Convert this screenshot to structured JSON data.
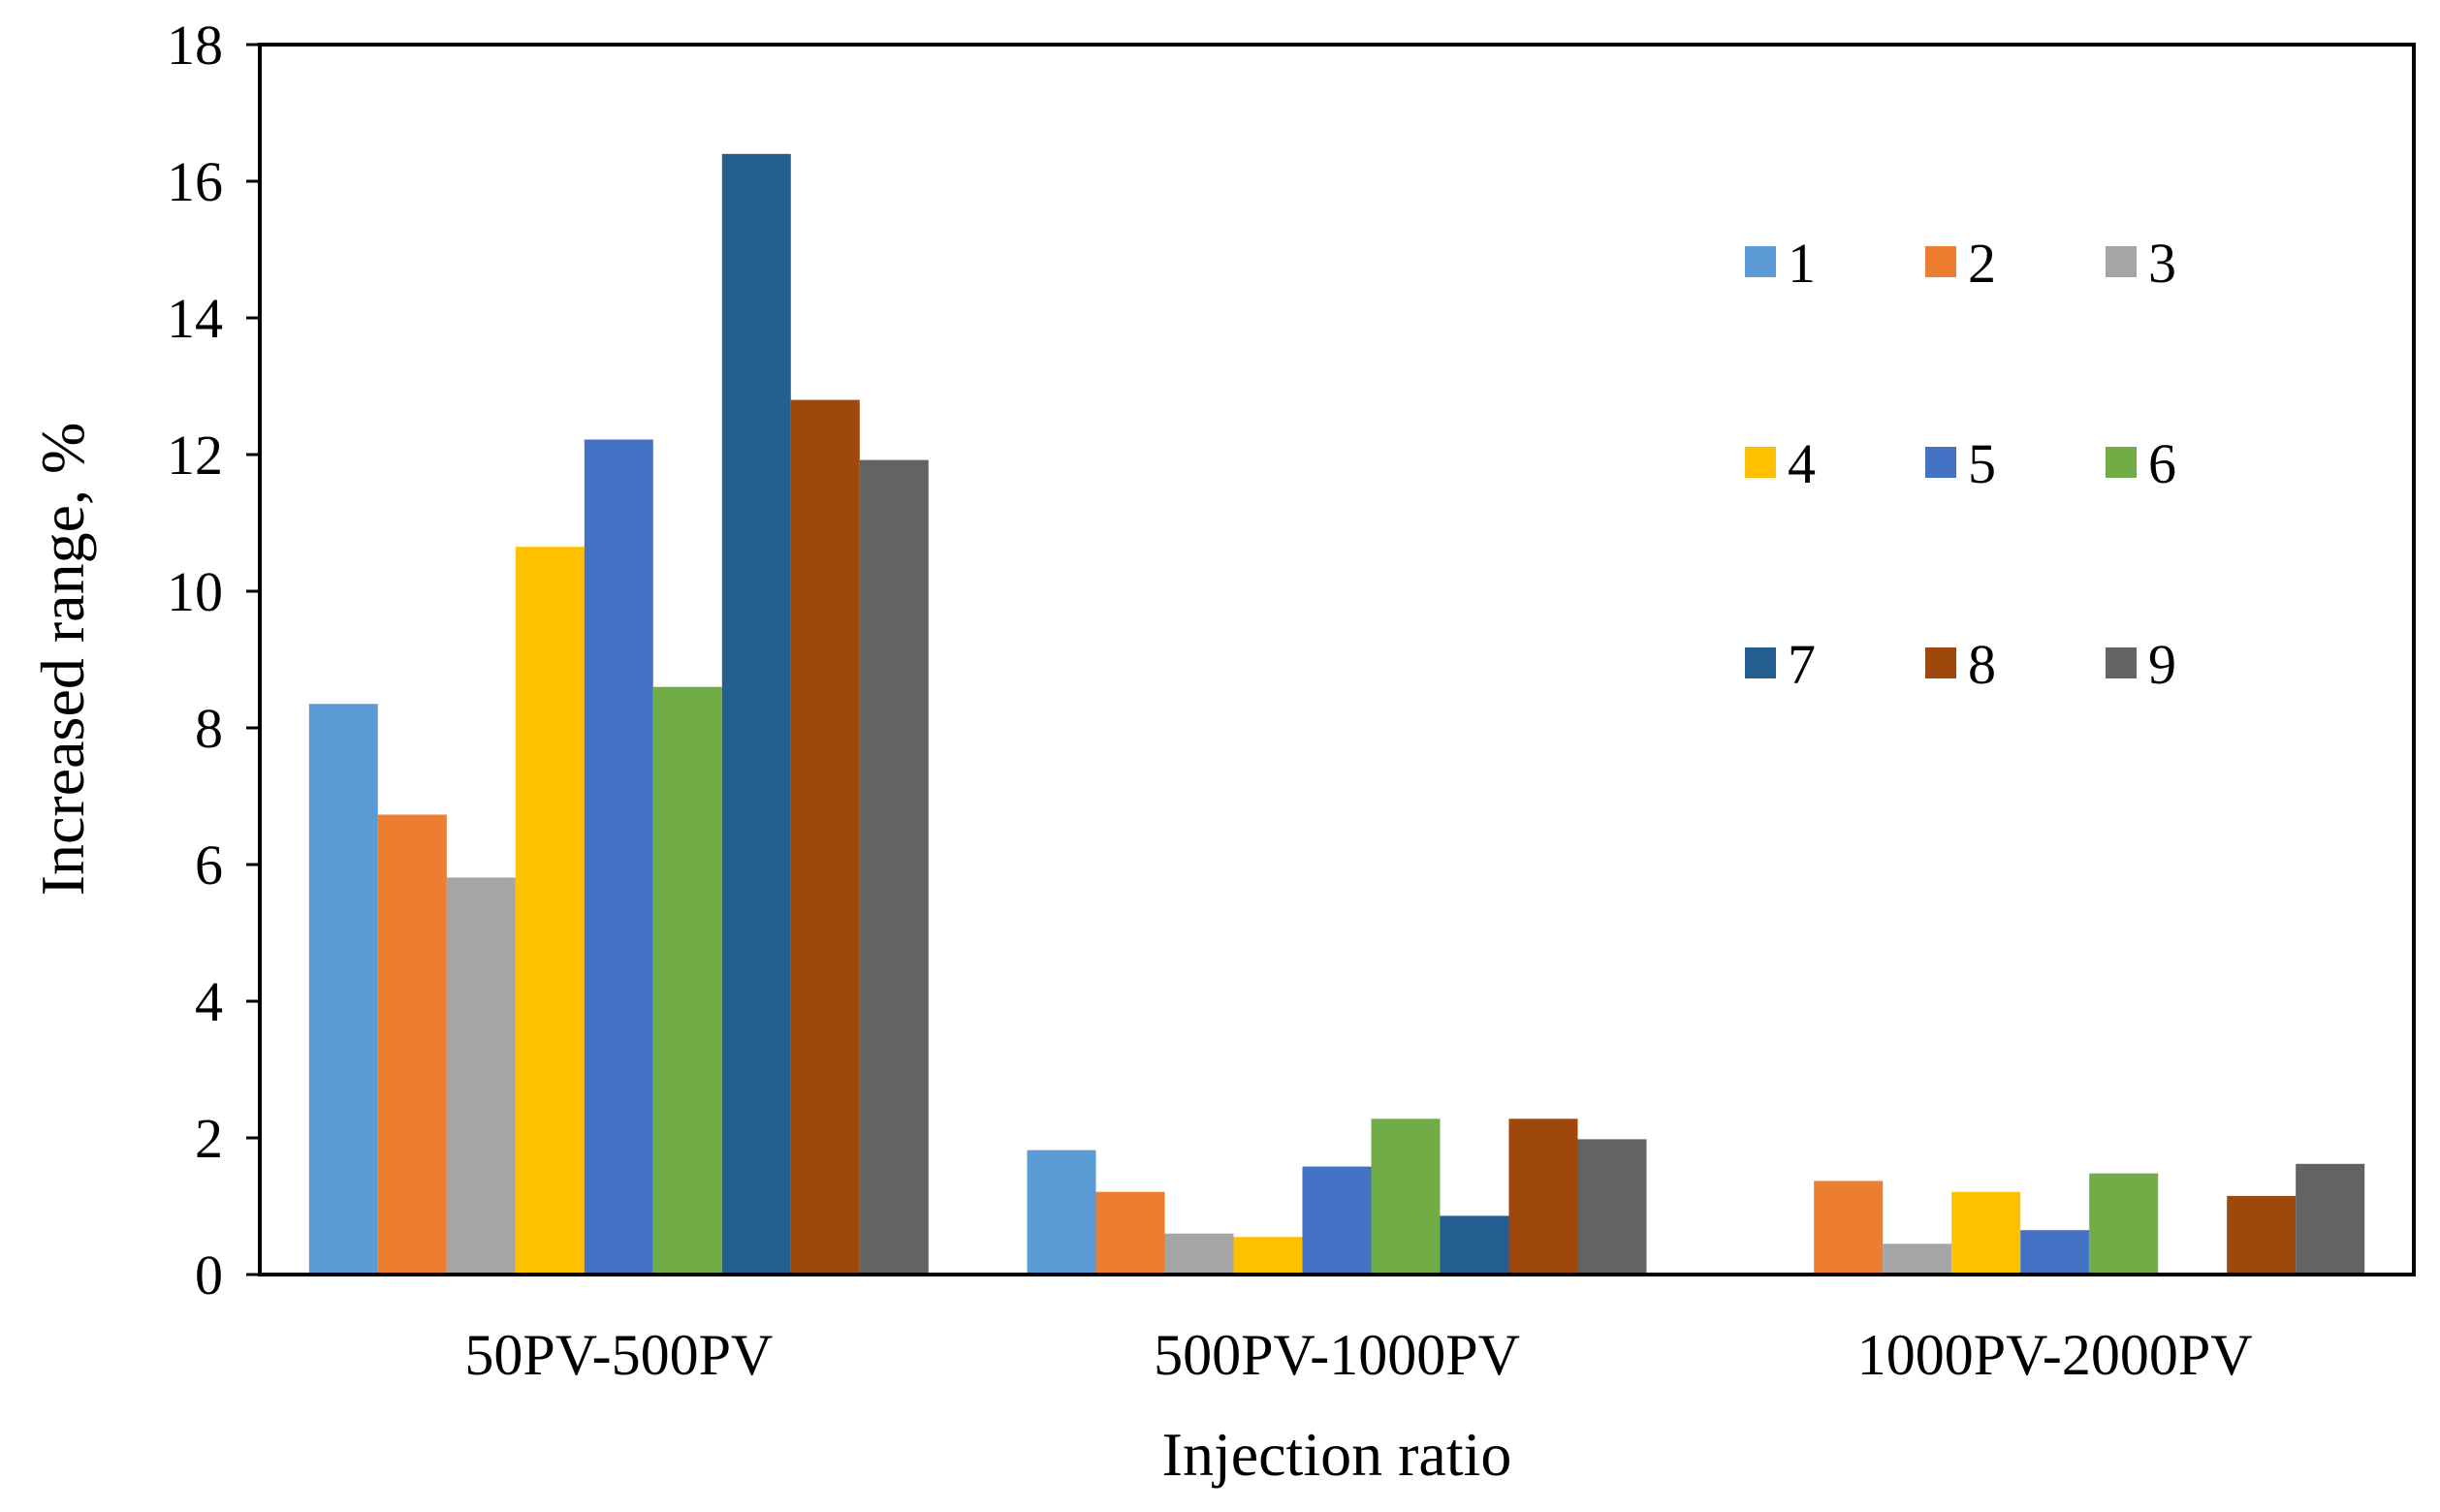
{
  "chart_data": {
    "type": "bar",
    "title": "",
    "xlabel": "Injection ratio",
    "ylabel": "Increased range, %",
    "ylim": [
      0,
      18
    ],
    "yticks": [
      0,
      2,
      4,
      6,
      8,
      10,
      12,
      14,
      16,
      18
    ],
    "categories": [
      "50PV-500PV",
      "500PV-1000PV",
      "1000PV-2000PV"
    ],
    "grid": false,
    "legend_position": "top-right",
    "series": [
      {
        "name": "1",
        "color": "#5B9BD5",
        "values": [
          8.35,
          1.82,
          0.0
        ]
      },
      {
        "name": "2",
        "color": "#ED7D31",
        "values": [
          6.73,
          1.21,
          1.37
        ]
      },
      {
        "name": "3",
        "color": "#A5A5A5",
        "values": [
          5.81,
          0.6,
          0.45
        ]
      },
      {
        "name": "4",
        "color": "#FFC000",
        "values": [
          10.65,
          0.55,
          1.21
        ]
      },
      {
        "name": "5",
        "color": "#4472C4",
        "values": [
          12.22,
          1.58,
          0.65
        ]
      },
      {
        "name": "6",
        "color": "#70AD47",
        "values": [
          8.6,
          2.28,
          1.48
        ]
      },
      {
        "name": "7",
        "color": "#255E91",
        "values": [
          16.4,
          0.86,
          0.0
        ]
      },
      {
        "name": "8",
        "color": "#9E480E",
        "values": [
          12.8,
          2.28,
          1.15
        ]
      },
      {
        "name": "9",
        "color": "#636363",
        "values": [
          11.92,
          1.98,
          1.62
        ]
      }
    ]
  }
}
